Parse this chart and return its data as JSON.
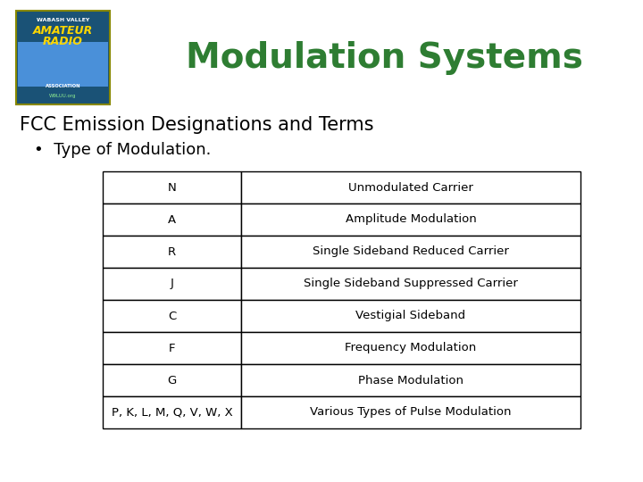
{
  "title": "Modulation Systems",
  "title_color": "#2E7D32",
  "title_fontsize": 28,
  "background_color": "#ffffff",
  "subtitle1": "FCC Emission Designations and Terms",
  "subtitle1_fontsize": 15,
  "subtitle1_fontweight": "normal",
  "bullet_text": "•  Type of Modulation.",
  "bullet_fontsize": 13,
  "table_data": [
    [
      "N",
      "Unmodulated Carrier"
    ],
    [
      "A",
      "Amplitude Modulation"
    ],
    [
      "R",
      "Single Sideband Reduced Carrier"
    ],
    [
      "J",
      "Single Sideband Suppressed Carrier"
    ],
    [
      "C",
      "Vestigial Sideband"
    ],
    [
      "F",
      "Frequency Modulation"
    ],
    [
      "G",
      "Phase Modulation"
    ],
    [
      "P, K, L, M, Q, V, W, X",
      "Various Types of Pulse Modulation"
    ]
  ],
  "cell_fontsize": 9.5,
  "border_color": "#000000",
  "cell_bg": "#ffffff",
  "text_color": "#000000",
  "logo_colors": {
    "bg": "#1a5276",
    "wabash": "#ffffff",
    "amateur": "#FFD700",
    "radio": "#FFD700",
    "assoc": "#ffffff",
    "callsign": "#90EE90"
  }
}
